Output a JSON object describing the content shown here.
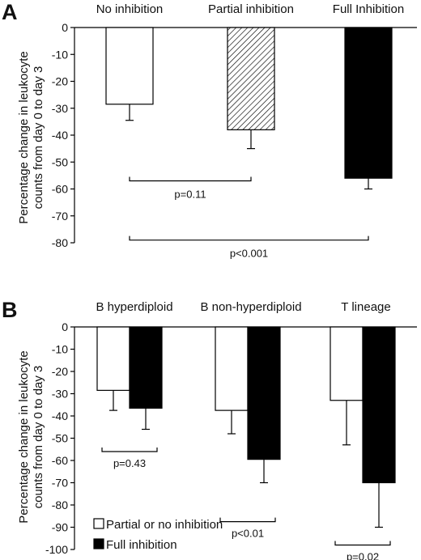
{
  "chart_data": [
    {
      "type": "bar",
      "panel": "A",
      "categories": [
        "No inhibition",
        "Partial inhibition",
        "Full Inhibition"
      ],
      "values": [
        -28.5,
        -38,
        -56
      ],
      "errors": [
        6,
        7,
        4
      ],
      "fills": [
        "white",
        "hatch",
        "black"
      ],
      "ylabel_lines": [
        "Percentage change in leukocyte",
        "counts from day 0 to day 3"
      ],
      "ylim": [
        -80,
        0
      ],
      "yticks": [
        0,
        -10,
        -20,
        -30,
        -40,
        -50,
        -60,
        -70,
        -80
      ],
      "comparisons": [
        {
          "from": 0,
          "to": 1,
          "level": -57,
          "label": "p=0.11"
        },
        {
          "from": 0,
          "to": 2,
          "level": -79,
          "label": "p<0.001"
        }
      ]
    },
    {
      "type": "bar",
      "panel": "B",
      "categories": [
        "B hyperdiploid",
        "B non-hyperdiploid",
        "T lineage"
      ],
      "series": [
        {
          "name": "Partial or no inhibition",
          "values": [
            -28.5,
            -37.5,
            -33
          ],
          "errors": [
            9,
            10.5,
            20
          ],
          "color": "#ffffff"
        },
        {
          "name": "Full inhibition",
          "values": [
            -36.5,
            -59.5,
            -70
          ],
          "errors": [
            9.5,
            10.5,
            20
          ],
          "color": "#000000"
        }
      ],
      "ylabel_lines": [
        "Percentage change in leukocyte",
        "counts from day 0 to day 3"
      ],
      "ylim": [
        -100,
        0
      ],
      "yticks": [
        0,
        -10,
        -20,
        -30,
        -40,
        -50,
        -60,
        -70,
        -80,
        -90,
        -100
      ],
      "comparisons": [
        {
          "group": 0,
          "level": -56,
          "label": "p=0.43"
        },
        {
          "group": 1,
          "level": -87.5,
          "label": "p<0.01"
        },
        {
          "group": 2,
          "level": -98,
          "label": "p=0.02"
        }
      ],
      "legend_position": "bottom-left"
    }
  ]
}
